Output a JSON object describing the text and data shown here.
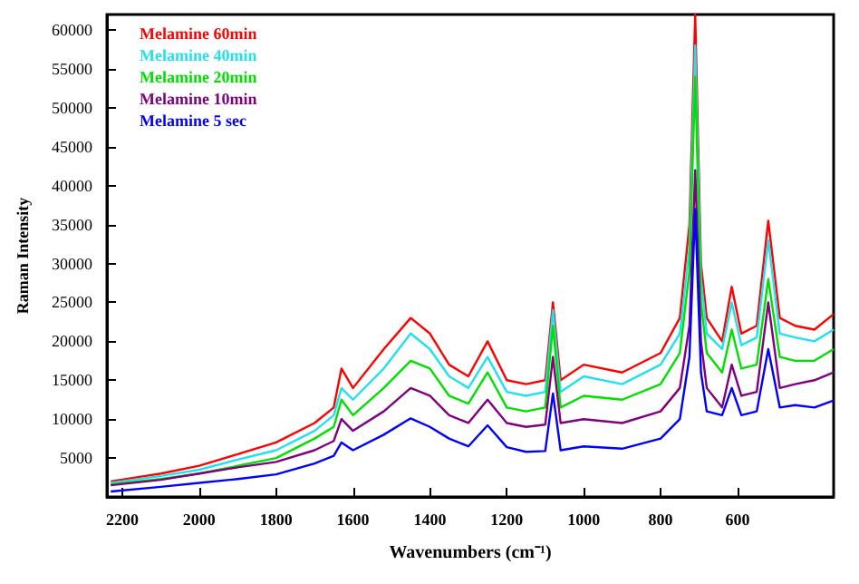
{
  "chart_data": {
    "type": "line",
    "xlabel": "Wavenumbers (cm⁻¹)",
    "ylabel": "Raman Intensity",
    "x": [
      2230,
      2100,
      2000,
      1900,
      1800,
      1700,
      1650,
      1630,
      1600,
      1520,
      1450,
      1400,
      1350,
      1300,
      1250,
      1200,
      1150,
      1100,
      1080,
      1060,
      1000,
      900,
      800,
      750,
      725,
      710,
      695,
      680,
      640,
      615,
      590,
      550,
      520,
      490,
      450,
      400,
      350
    ],
    "xlim": [
      2240,
      350
    ],
    "xticks": [
      2200,
      2000,
      1800,
      1600,
      1400,
      1200,
      1000,
      800,
      600
    ],
    "ylim": [
      0,
      62000
    ],
    "yticks": [
      5000,
      10000,
      15000,
      20000,
      25000,
      30000,
      35000,
      40000,
      45000,
      50000,
      55000,
      60000
    ],
    "grid": false,
    "marker": "none",
    "legend": "top left",
    "series": [
      {
        "name": "Melamine 60min",
        "color": "#ff0000",
        "values": [
          2000,
          3000,
          4000,
          5500,
          7000,
          9500,
          11500,
          16500,
          14000,
          19000,
          23000,
          21000,
          17000,
          15500,
          20000,
          15000,
          14500,
          15000,
          25000,
          15000,
          17000,
          16000,
          18500,
          23000,
          35000,
          62000,
          30000,
          23000,
          20000,
          27000,
          21000,
          22000,
          35500,
          23000,
          22000,
          21500,
          23500
        ]
      },
      {
        "name": "Melamine 40min",
        "color": "#22e0f0",
        "values": [
          1800,
          2700,
          3500,
          4800,
          6000,
          8500,
          10500,
          14000,
          12500,
          16500,
          21000,
          19000,
          15500,
          14000,
          18000,
          13500,
          13000,
          13500,
          24000,
          13500,
          15500,
          14500,
          17000,
          21000,
          32000,
          58000,
          28000,
          21000,
          19000,
          25000,
          19500,
          20500,
          33000,
          21000,
          20500,
          20000,
          21500
        ]
      },
      {
        "name": "Melamine 20min",
        "color": "#00e000",
        "values": [
          1600,
          2300,
          3000,
          4000,
          5000,
          7500,
          9000,
          12500,
          10500,
          14000,
          17500,
          16500,
          13000,
          12000,
          16000,
          11500,
          11000,
          11500,
          22000,
          11500,
          13000,
          12500,
          14500,
          18500,
          29000,
          54000,
          25000,
          18500,
          16000,
          21500,
          16500,
          17000,
          28000,
          18000,
          17500,
          17500,
          19000
        ]
      },
      {
        "name": "Melamine 10min",
        "color": "#800080",
        "values": [
          1500,
          2200,
          3000,
          3800,
          4500,
          6000,
          7200,
          10000,
          8500,
          11000,
          14000,
          13000,
          10500,
          9500,
          12500,
          9500,
          9000,
          9300,
          18000,
          9500,
          10000,
          9500,
          11000,
          14000,
          22000,
          42000,
          20000,
          14000,
          11500,
          17000,
          13000,
          13500,
          25000,
          14000,
          14500,
          15000,
          16000
        ]
      },
      {
        "name": "Melamine 5 sec",
        "color": "#0000ff",
        "values": [
          700,
          1300,
          1800,
          2300,
          2900,
          4300,
          5300,
          7000,
          6000,
          8000,
          10100,
          9000,
          7500,
          6500,
          9200,
          6400,
          5800,
          5900,
          13300,
          6000,
          6500,
          6200,
          7500,
          10000,
          18000,
          37000,
          16000,
          11000,
          10500,
          14000,
          10500,
          11000,
          19000,
          11500,
          11800,
          11500,
          12400
        ]
      }
    ]
  }
}
